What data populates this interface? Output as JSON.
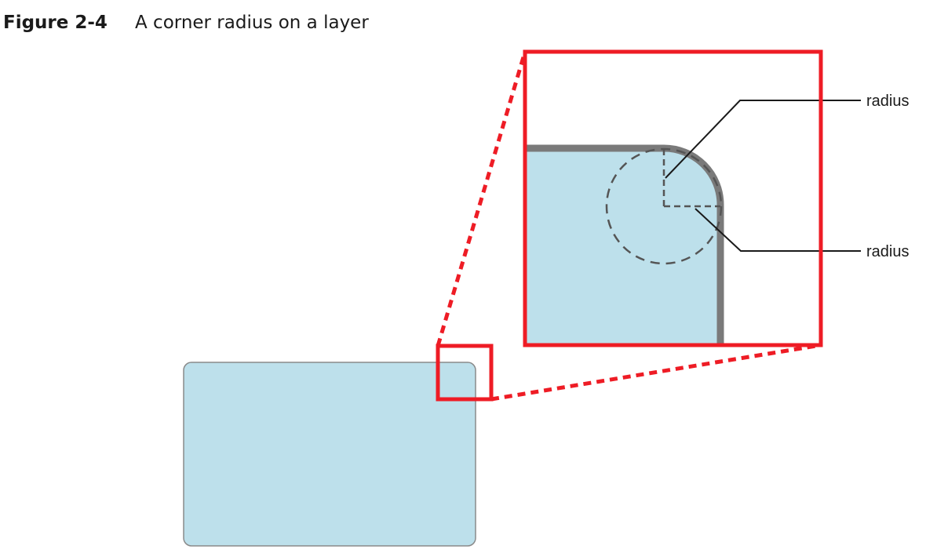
{
  "figure": {
    "number": "Figure 2-4",
    "title": "A corner radius on a layer"
  },
  "labels": {
    "radius_top": "radius",
    "radius_bottom": "radius"
  },
  "colors": {
    "layer_fill": "#bde0eb",
    "layer_border": "#8a8a8a",
    "zoom_frame": "#ee1c25",
    "zoom_border_stroke": "#7a7a7a",
    "radius_guides": "#555555",
    "leader_lines": "#1a1a1a"
  }
}
